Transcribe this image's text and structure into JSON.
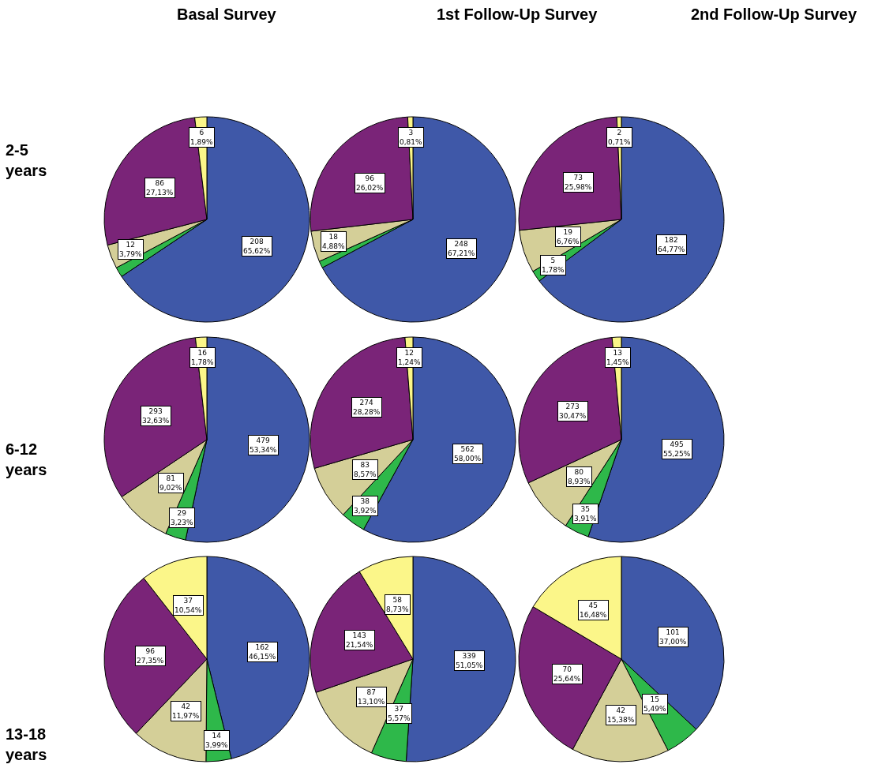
{
  "chart_data": [
    {
      "type": "pie",
      "title": "Basal Survey",
      "annotations": [
        "2-5\nyears"
      ],
      "categories": [
        null,
        null,
        null,
        null,
        null
      ],
      "colors": [
        "#3f58a8",
        "#2eb84a",
        "#d4cf98",
        "#7a2478",
        "#fbf689"
      ],
      "values": [
        208,
        5,
        12,
        86,
        6
      ],
      "value_labels": [
        "208\n65,62%",
        null,
        "12\n3,79%",
        "86\n27,13%",
        "6\n1,89%"
      ]
    },
    {
      "type": "pie",
      "title": "1st Follow-Up Survey",
      "categories": [
        null,
        null,
        null,
        null,
        null
      ],
      "colors": [
        "#3f58a8",
        "#2eb84a",
        "#d4cf98",
        "#7a2478",
        "#fbf689"
      ],
      "values": [
        248,
        4,
        18,
        96,
        3
      ],
      "value_labels": [
        "248\n67,21%",
        null,
        "18\n4,88%",
        "96\n26,02%",
        "3\n0,81%"
      ]
    },
    {
      "type": "pie",
      "title": "2nd Follow-Up Survey",
      "categories": [
        null,
        null,
        null,
        null,
        null
      ],
      "colors": [
        "#3f58a8",
        "#2eb84a",
        "#d4cf98",
        "#7a2478",
        "#fbf689"
      ],
      "values": [
        182,
        5,
        19,
        73,
        2
      ],
      "value_labels": [
        "182\n64,77%",
        "5\n1,78%",
        "19\n6,76%",
        "73\n25,98%",
        "2\n0,71%"
      ]
    },
    {
      "type": "pie",
      "annotations": [
        "6-12\nyears"
      ],
      "categories": [
        null,
        null,
        null,
        null,
        null
      ],
      "colors": [
        "#3f58a8",
        "#2eb84a",
        "#d4cf98",
        "#7a2478",
        "#fbf689"
      ],
      "values": [
        479,
        29,
        81,
        293,
        16
      ],
      "value_labels": [
        "479\n53,34%",
        "29\n3,23%",
        "81\n9,02%",
        "293\n32,63%",
        "16\n1,78%"
      ]
    },
    {
      "type": "pie",
      "categories": [
        null,
        null,
        null,
        null,
        null
      ],
      "colors": [
        "#3f58a8",
        "#2eb84a",
        "#d4cf98",
        "#7a2478",
        "#fbf689"
      ],
      "values": [
        562,
        38,
        83,
        274,
        12
      ],
      "value_labels": [
        "562\n58,00%",
        "38\n3,92%",
        "83\n8,57%",
        "274\n28,28%",
        "12\n1,24%"
      ]
    },
    {
      "type": "pie",
      "categories": [
        null,
        null,
        null,
        null,
        null
      ],
      "colors": [
        "#3f58a8",
        "#2eb84a",
        "#d4cf98",
        "#7a2478",
        "#fbf689"
      ],
      "values": [
        495,
        35,
        80,
        273,
        13
      ],
      "value_labels": [
        "495\n55,25%",
        "35\n3,91%",
        "80\n8,93%",
        "273\n30,47%",
        "13\n1,45%"
      ]
    },
    {
      "type": "pie",
      "annotations": [
        "13-18\nyears"
      ],
      "categories": [
        null,
        null,
        null,
        null,
        null
      ],
      "colors": [
        "#3f58a8",
        "#2eb84a",
        "#d4cf98",
        "#7a2478",
        "#fbf689"
      ],
      "values": [
        162,
        14,
        42,
        96,
        37
      ],
      "value_labels": [
        "162\n46,15%",
        "14\n3,99%",
        "42\n11,97%",
        "96\n27,35%",
        "37\n10,54%"
      ]
    },
    {
      "type": "pie",
      "categories": [
        null,
        null,
        null,
        null,
        null
      ],
      "colors": [
        "#3f58a8",
        "#2eb84a",
        "#d4cf98",
        "#7a2478",
        "#fbf689"
      ],
      "values": [
        339,
        37,
        87,
        143,
        58
      ],
      "value_labels": [
        "339\n51,05%",
        "37\n5,57%",
        "87\n13,10%",
        "143\n21,54%",
        "58\n8,73%"
      ]
    },
    {
      "type": "pie",
      "categories": [
        null,
        null,
        null,
        null,
        null
      ],
      "colors": [
        "#3f58a8",
        "#2eb84a",
        "#d4cf98",
        "#7a2478",
        "#fbf689"
      ],
      "values": [
        101,
        15,
        42,
        70,
        45
      ],
      "value_labels": [
        "101\n37,00%",
        "15\n5,49%",
        "42\n15,38%",
        "70\n25,64%",
        "45\n16,48%"
      ]
    }
  ]
}
